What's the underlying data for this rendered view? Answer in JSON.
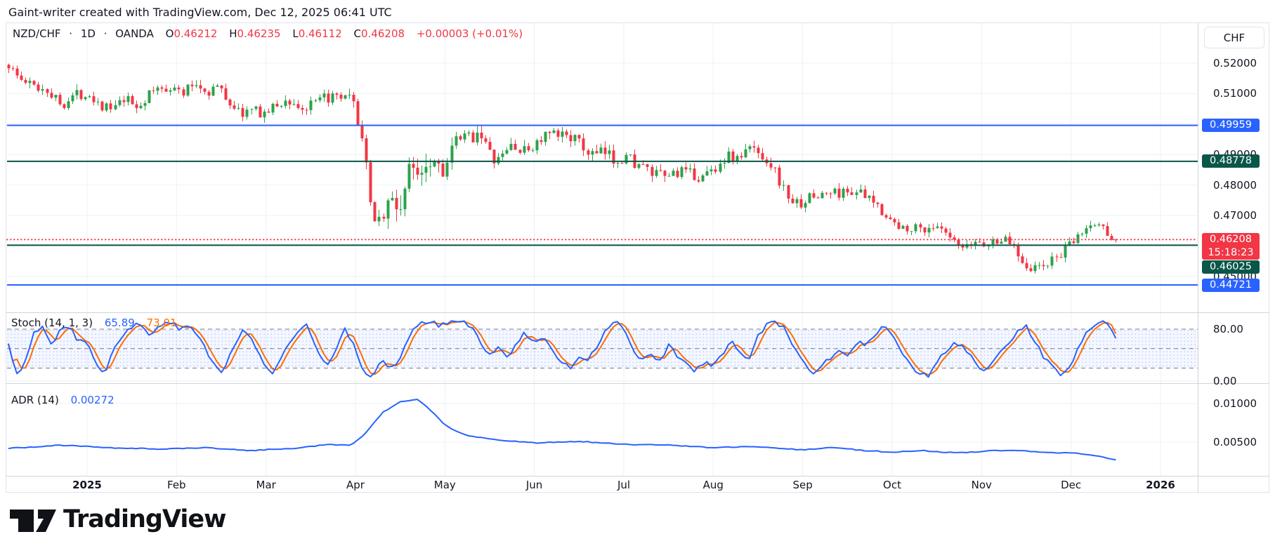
{
  "attribution": "Gaint-writer created with TradingView.com, Dec 12, 2025 06:41 UTC",
  "header": {
    "symbol": "NZD/CHF",
    "separator": "·",
    "interval": "1D",
    "exchange": "OANDA",
    "o_label": "O",
    "o_value": "0.46212",
    "h_label": "H",
    "h_value": "0.46235",
    "l_label": "L",
    "l_value": "0.46112",
    "c_label": "C",
    "c_value": "0.46208",
    "change": "+0.00003 (+0.01%)"
  },
  "price_axis": {
    "currency_button": "CHF",
    "labels": [
      {
        "text": "0.52000",
        "price": 0.52
      },
      {
        "text": "0.51000",
        "price": 0.51
      },
      {
        "text": "0.49000",
        "price": 0.49
      },
      {
        "text": "0.48000",
        "price": 0.48
      },
      {
        "text": "0.47000",
        "price": 0.47
      },
      {
        "text": "0.45000",
        "price": 0.45
      }
    ],
    "badges": [
      {
        "text": "0.49959",
        "price": 0.49959,
        "type": "blue"
      },
      {
        "text": "0.48778",
        "price": 0.48778,
        "type": "green"
      },
      {
        "text": "0.46208",
        "countdown": "15:18:23",
        "price": 0.46208,
        "type": "red"
      },
      {
        "text": "0.46025",
        "price": 0.46025,
        "type": "green"
      },
      {
        "text": "0.44721",
        "price": 0.44721,
        "type": "blue"
      }
    ]
  },
  "indicators": {
    "stoch": {
      "title": "Stoch (14, 1, 3)",
      "k_value": "65.89",
      "d_value": "73.01",
      "axis_labels": [
        {
          "text": "80.00",
          "value": 80
        },
        {
          "text": "0.00",
          "value": 0
        }
      ]
    },
    "adr": {
      "title": "ADR (14)",
      "value": "0.00272",
      "axis_labels": [
        {
          "text": "0.01000",
          "value": 0.01
        },
        {
          "text": "0.00500",
          "value": 0.005
        }
      ]
    }
  },
  "time_axis": {
    "labels": [
      {
        "m": 0,
        "text": "2025",
        "bold": true
      },
      {
        "m": 1,
        "text": "Feb"
      },
      {
        "m": 2,
        "text": "Mar"
      },
      {
        "m": 3,
        "text": "Apr"
      },
      {
        "m": 4,
        "text": "May"
      },
      {
        "m": 5,
        "text": "Jun"
      },
      {
        "m": 6,
        "text": "Jul"
      },
      {
        "m": 7,
        "text": "Aug"
      },
      {
        "m": 8,
        "text": "Sep"
      },
      {
        "m": 9,
        "text": "Oct"
      },
      {
        "m": 10,
        "text": "Nov"
      },
      {
        "m": 11,
        "text": "Dec"
      },
      {
        "m": 12,
        "text": "2026",
        "bold": true
      }
    ]
  },
  "logo": {
    "text": "TradingView"
  },
  "colors": {
    "up": "#2ca24c",
    "down": "#f23645",
    "blue": "#2962ff",
    "dark_green": "#0a5649",
    "red": "#f23645",
    "k_line": "#2962ff",
    "d_line": "#ff6d00",
    "adr_line": "#2962ff",
    "grid": "#eef0f6",
    "separator": "#d1d4dc",
    "text": "#131722",
    "band_fill": "rgba(41,98,255,0.05)",
    "band_dot": "rgba(41,98,255,0.30)",
    "band_line": "#787b86"
  },
  "chart_data": {
    "type": "candlestick",
    "symbol": "NZD/CHF",
    "interval": "1D",
    "exchange": "OANDA",
    "last_candle": {
      "open": 0.46212,
      "high": 0.46235,
      "low": 0.46112,
      "close": 0.46208,
      "change": "+0.00003 (+0.01%)"
    },
    "levels": [
      {
        "price": 0.49959,
        "style": "solid",
        "color": "blue"
      },
      {
        "price": 0.48778,
        "style": "solid",
        "color": "dark_green"
      },
      {
        "price": 0.46208,
        "style": "dotted",
        "color": "red"
      },
      {
        "price": 0.46025,
        "style": "solid",
        "color": "dark_green"
      },
      {
        "price": 0.44721,
        "style": "solid",
        "color": "blue"
      }
    ],
    "price_gridlines": [
      0.52,
      0.51,
      0.5,
      0.49,
      0.48,
      0.47,
      0.46,
      0.45
    ],
    "stoch_bands": {
      "upper": 80,
      "middle": 50,
      "lower": 20
    },
    "price_path": [
      [
        -0.88,
        0.5195
      ],
      [
        -0.75,
        0.5145
      ],
      [
        -0.6,
        0.5125
      ],
      [
        -0.45,
        0.5115
      ],
      [
        -0.3,
        0.5065
      ],
      [
        -0.15,
        0.5095
      ],
      [
        0.0,
        0.5105
      ],
      [
        0.15,
        0.5065
      ],
      [
        0.28,
        0.5045
      ],
      [
        0.42,
        0.508
      ],
      [
        0.56,
        0.5055
      ],
      [
        0.74,
        0.511
      ],
      [
        0.93,
        0.5125
      ],
      [
        1.06,
        0.51
      ],
      [
        1.2,
        0.5135
      ],
      [
        1.34,
        0.5105
      ],
      [
        1.45,
        0.5125
      ],
      [
        1.57,
        0.508
      ],
      [
        1.71,
        0.5035
      ],
      [
        1.85,
        0.5045
      ],
      [
        1.99,
        0.5035
      ],
      [
        2.13,
        0.5065
      ],
      [
        2.27,
        0.5075
      ],
      [
        2.41,
        0.5045
      ],
      [
        2.55,
        0.5065
      ],
      [
        2.69,
        0.509
      ],
      [
        2.81,
        0.5075
      ],
      [
        2.92,
        0.5085
      ],
      [
        3.0,
        0.5045
      ],
      [
        3.08,
        0.4945
      ],
      [
        3.17,
        0.4725
      ],
      [
        3.28,
        0.4685
      ],
      [
        3.38,
        0.4755
      ],
      [
        3.48,
        0.4715
      ],
      [
        3.59,
        0.4835
      ],
      [
        3.71,
        0.4865
      ],
      [
        3.85,
        0.4895
      ],
      [
        3.99,
        0.4855
      ],
      [
        4.13,
        0.4945
      ],
      [
        4.27,
        0.4955
      ],
      [
        4.39,
        0.4985
      ],
      [
        4.5,
        0.4895
      ],
      [
        4.61,
        0.4875
      ],
      [
        4.73,
        0.4935
      ],
      [
        4.87,
        0.4905
      ],
      [
        5.01,
        0.4935
      ],
      [
        5.15,
        0.4965
      ],
      [
        5.26,
        0.4955
      ],
      [
        5.38,
        0.4975
      ],
      [
        5.52,
        0.4925
      ],
      [
        5.66,
        0.4895
      ],
      [
        5.78,
        0.4905
      ],
      [
        5.89,
        0.4885
      ],
      [
        6.03,
        0.4895
      ],
      [
        6.17,
        0.4865
      ],
      [
        6.31,
        0.4835
      ],
      [
        6.45,
        0.4825
      ],
      [
        6.59,
        0.4845
      ],
      [
        6.73,
        0.4835
      ],
      [
        6.87,
        0.4825
      ],
      [
        7.01,
        0.4855
      ],
      [
        7.15,
        0.4895
      ],
      [
        7.28,
        0.4885
      ],
      [
        7.42,
        0.4925
      ],
      [
        7.56,
        0.4895
      ],
      [
        7.66,
        0.4865
      ],
      [
        7.8,
        0.4775
      ],
      [
        7.92,
        0.4735
      ],
      [
        8.05,
        0.4755
      ],
      [
        8.17,
        0.4765
      ],
      [
        8.31,
        0.4775
      ],
      [
        8.45,
        0.4775
      ],
      [
        8.59,
        0.4785
      ],
      [
        8.7,
        0.4755
      ],
      [
        8.82,
        0.4735
      ],
      [
        8.96,
        0.4695
      ],
      [
        9.07,
        0.4655
      ],
      [
        9.19,
        0.4665
      ],
      [
        9.33,
        0.4655
      ],
      [
        9.44,
        0.4665
      ],
      [
        9.56,
        0.4645
      ],
      [
        9.7,
        0.4605
      ],
      [
        9.81,
        0.4585
      ],
      [
        9.93,
        0.4615
      ],
      [
        10.07,
        0.4605
      ],
      [
        10.21,
        0.4625
      ],
      [
        10.35,
        0.4605
      ],
      [
        10.45,
        0.4555
      ],
      [
        10.55,
        0.4525
      ],
      [
        10.7,
        0.4535
      ],
      [
        10.85,
        0.4565
      ],
      [
        11.0,
        0.4605
      ],
      [
        11.15,
        0.4655
      ],
      [
        11.3,
        0.4675
      ],
      [
        11.42,
        0.464
      ],
      [
        11.5,
        0.46208
      ]
    ],
    "stoch_k_path": [
      [
        -0.88,
        55
      ],
      [
        -0.8,
        10
      ],
      [
        -0.7,
        25
      ],
      [
        -0.6,
        75
      ],
      [
        -0.5,
        85
      ],
      [
        -0.4,
        55
      ],
      [
        -0.3,
        80
      ],
      [
        -0.2,
        85
      ],
      [
        -0.1,
        60
      ],
      [
        0,
        62
      ],
      [
        0.1,
        25
      ],
      [
        0.2,
        12
      ],
      [
        0.32,
        55
      ],
      [
        0.45,
        80
      ],
      [
        0.58,
        88
      ],
      [
        0.7,
        70
      ],
      [
        0.82,
        85
      ],
      [
        0.95,
        90
      ],
      [
        1.05,
        78
      ],
      [
        1.15,
        88
      ],
      [
        1.28,
        60
      ],
      [
        1.4,
        28
      ],
      [
        1.5,
        12
      ],
      [
        1.62,
        45
      ],
      [
        1.75,
        85
      ],
      [
        1.88,
        55
      ],
      [
        1.98,
        25
      ],
      [
        2.08,
        10
      ],
      [
        2.2,
        45
      ],
      [
        2.32,
        70
      ],
      [
        2.45,
        88
      ],
      [
        2.57,
        50
      ],
      [
        2.67,
        20
      ],
      [
        2.78,
        50
      ],
      [
        2.88,
        80
      ],
      [
        2.98,
        55
      ],
      [
        3.08,
        15
      ],
      [
        3.18,
        8
      ],
      [
        3.3,
        30
      ],
      [
        3.42,
        18
      ],
      [
        3.52,
        40
      ],
      [
        3.62,
        75
      ],
      [
        3.72,
        88
      ],
      [
        3.85,
        92
      ],
      [
        3.95,
        85
      ],
      [
        4.05,
        90
      ],
      [
        4.18,
        92
      ],
      [
        4.3,
        85
      ],
      [
        4.4,
        60
      ],
      [
        4.5,
        40
      ],
      [
        4.6,
        55
      ],
      [
        4.7,
        35
      ],
      [
        4.8,
        60
      ],
      [
        4.9,
        75
      ],
      [
        5.0,
        55
      ],
      [
        5.1,
        70
      ],
      [
        5.2,
        45
      ],
      [
        5.3,
        30
      ],
      [
        5.4,
        20
      ],
      [
        5.5,
        40
      ],
      [
        5.6,
        30
      ],
      [
        5.7,
        55
      ],
      [
        5.8,
        80
      ],
      [
        5.9,
        92
      ],
      [
        6.0,
        85
      ],
      [
        6.1,
        45
      ],
      [
        6.2,
        30
      ],
      [
        6.3,
        42
      ],
      [
        6.4,
        30
      ],
      [
        6.5,
        55
      ],
      [
        6.6,
        38
      ],
      [
        6.7,
        25
      ],
      [
        6.8,
        15
      ],
      [
        6.9,
        30
      ],
      [
        7.0,
        22
      ],
      [
        7.1,
        40
      ],
      [
        7.2,
        65
      ],
      [
        7.3,
        45
      ],
      [
        7.4,
        35
      ],
      [
        7.5,
        70
      ],
      [
        7.6,
        88
      ],
      [
        7.7,
        92
      ],
      [
        7.8,
        80
      ],
      [
        7.9,
        55
      ],
      [
        8.0,
        35
      ],
      [
        8.1,
        12
      ],
      [
        8.2,
        20
      ],
      [
        8.3,
        35
      ],
      [
        8.4,
        50
      ],
      [
        8.5,
        42
      ],
      [
        8.6,
        60
      ],
      [
        8.7,
        55
      ],
      [
        8.8,
        70
      ],
      [
        8.9,
        88
      ],
      [
        9.0,
        75
      ],
      [
        9.1,
        45
      ],
      [
        9.2,
        25
      ],
      [
        9.3,
        12
      ],
      [
        9.4,
        8
      ],
      [
        9.5,
        30
      ],
      [
        9.6,
        45
      ],
      [
        9.7,
        60
      ],
      [
        9.8,
        50
      ],
      [
        9.9,
        35
      ],
      [
        10.0,
        15
      ],
      [
        10.1,
        25
      ],
      [
        10.2,
        45
      ],
      [
        10.3,
        60
      ],
      [
        10.4,
        75
      ],
      [
        10.5,
        85
      ],
      [
        10.6,
        60
      ],
      [
        10.7,
        35
      ],
      [
        10.8,
        20
      ],
      [
        10.9,
        10
      ],
      [
        11.0,
        25
      ],
      [
        11.1,
        55
      ],
      [
        11.2,
        80
      ],
      [
        11.3,
        92
      ],
      [
        11.4,
        90
      ],
      [
        11.5,
        65.89
      ]
    ],
    "stoch_last": {
      "k": 65.89,
      "d": 73.01
    },
    "adr_path": [
      [
        -0.88,
        0.0042
      ],
      [
        -0.3,
        0.0046
      ],
      [
        0.2,
        0.0043
      ],
      [
        0.8,
        0.0041
      ],
      [
        1.3,
        0.0043
      ],
      [
        1.8,
        0.0039
      ],
      [
        2.3,
        0.0042
      ],
      [
        2.7,
        0.0047
      ],
      [
        2.95,
        0.0046
      ],
      [
        3.1,
        0.006
      ],
      [
        3.3,
        0.0088
      ],
      [
        3.5,
        0.0102
      ],
      [
        3.7,
        0.0105
      ],
      [
        3.85,
        0.009
      ],
      [
        4.0,
        0.0072
      ],
      [
        4.2,
        0.006
      ],
      [
        4.5,
        0.0054
      ],
      [
        5.0,
        0.0049
      ],
      [
        5.5,
        0.0051
      ],
      [
        6.0,
        0.0047
      ],
      [
        6.5,
        0.0046
      ],
      [
        7.0,
        0.0043
      ],
      [
        7.5,
        0.0044
      ],
      [
        8.0,
        0.004
      ],
      [
        8.35,
        0.0043
      ],
      [
        8.7,
        0.0039
      ],
      [
        9.0,
        0.0037
      ],
      [
        9.35,
        0.0039
      ],
      [
        9.7,
        0.0036
      ],
      [
        10.0,
        0.0038
      ],
      [
        10.35,
        0.004
      ],
      [
        10.7,
        0.0037
      ],
      [
        11.0,
        0.0036
      ],
      [
        11.25,
        0.0033
      ],
      [
        11.5,
        0.00272
      ]
    ],
    "adr_last": 0.00272
  }
}
